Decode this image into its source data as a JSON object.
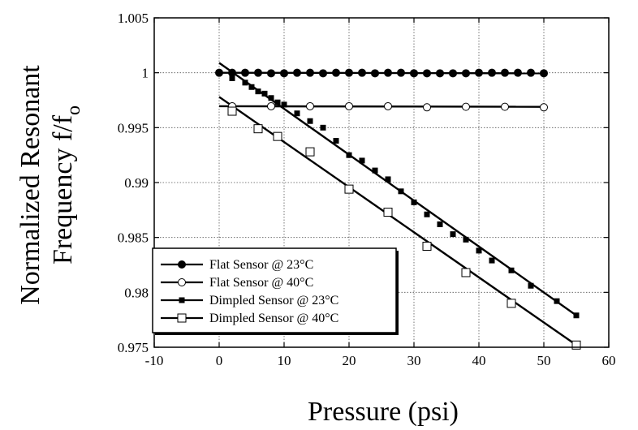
{
  "chart_data": {
    "type": "scatter",
    "title": "",
    "xlabel": "Pressure (psi)",
    "ylabel": "Normalized Resonant Frequency f/f",
    "ylabel_subscript": "o",
    "xlim": [
      -10,
      60
    ],
    "ylim": [
      0.975,
      1.005
    ],
    "xticks": [
      -10,
      0,
      10,
      20,
      30,
      40,
      50,
      60
    ],
    "yticks": [
      0.975,
      0.98,
      0.985,
      0.99,
      0.995,
      1,
      1.005
    ],
    "ytick_labels": [
      "0.975",
      "0.98",
      "0.985",
      "0.99",
      "0.995",
      "1",
      "1.005"
    ],
    "grid": true,
    "legend_position": "bottom-left",
    "series": [
      {
        "name": "Flat Sensor @ 23°C",
        "marker": "filled-circle",
        "x": [
          0,
          2,
          4,
          6,
          8,
          10,
          12,
          14,
          16,
          18,
          20,
          22,
          24,
          26,
          28,
          30,
          32,
          34,
          36,
          38,
          40,
          42,
          44,
          46,
          48,
          50
        ],
        "y": [
          1.0,
          1.0,
          1.0,
          1.0,
          0.99995,
          0.99995,
          1.0,
          1.0,
          0.99995,
          1.0,
          1.0,
          1.0,
          0.99995,
          1.0,
          1.0,
          0.99995,
          0.99995,
          0.99995,
          0.99995,
          0.99995,
          1.0,
          1.0,
          1.0,
          1.0,
          1.0,
          0.99995
        ],
        "fit": [
          [
            0,
            1.0
          ],
          [
            50,
            0.99995
          ]
        ]
      },
      {
        "name": "Flat Sensor @ 40°C",
        "marker": "open-circle",
        "x": [
          2,
          8,
          14,
          20,
          26,
          32,
          38,
          44,
          50
        ],
        "y": [
          0.99695,
          0.99695,
          0.99695,
          0.99695,
          0.99695,
          0.99685,
          0.9969,
          0.9969,
          0.99685
        ],
        "fit": [
          [
            0,
            0.99695
          ],
          [
            50,
            0.9969
          ]
        ]
      },
      {
        "name": "Dimpled Sensor @ 23°C",
        "marker": "filled-square",
        "x": [
          2,
          4,
          5,
          6,
          7,
          8,
          9,
          10,
          12,
          14,
          16,
          18,
          20,
          22,
          24,
          26,
          28,
          30,
          32,
          34,
          36,
          38,
          40,
          42,
          45,
          48,
          52,
          55
        ],
        "y": [
          0.9995,
          0.9991,
          0.9987,
          0.9983,
          0.9981,
          0.9977,
          0.9973,
          0.9971,
          0.9963,
          0.9956,
          0.995,
          0.9938,
          0.9925,
          0.992,
          0.9911,
          0.9903,
          0.9892,
          0.9882,
          0.9871,
          0.9862,
          0.9853,
          0.9848,
          0.9838,
          0.9829,
          0.982,
          0.9806,
          0.9792,
          0.9779
        ],
        "fit": [
          [
            0,
            1.0009
          ],
          [
            55,
            0.9779
          ]
        ]
      },
      {
        "name": "Dimpled Sensor @ 40°C",
        "marker": "open-square",
        "x": [
          2,
          6,
          9,
          14,
          20,
          26,
          32,
          38,
          45,
          55
        ],
        "y": [
          0.9965,
          0.9949,
          0.9942,
          0.9928,
          0.9894,
          0.9873,
          0.9842,
          0.9818,
          0.979,
          0.9752
        ],
        "fit": [
          [
            0,
            0.9978
          ],
          [
            55,
            0.9752
          ]
        ]
      }
    ]
  }
}
